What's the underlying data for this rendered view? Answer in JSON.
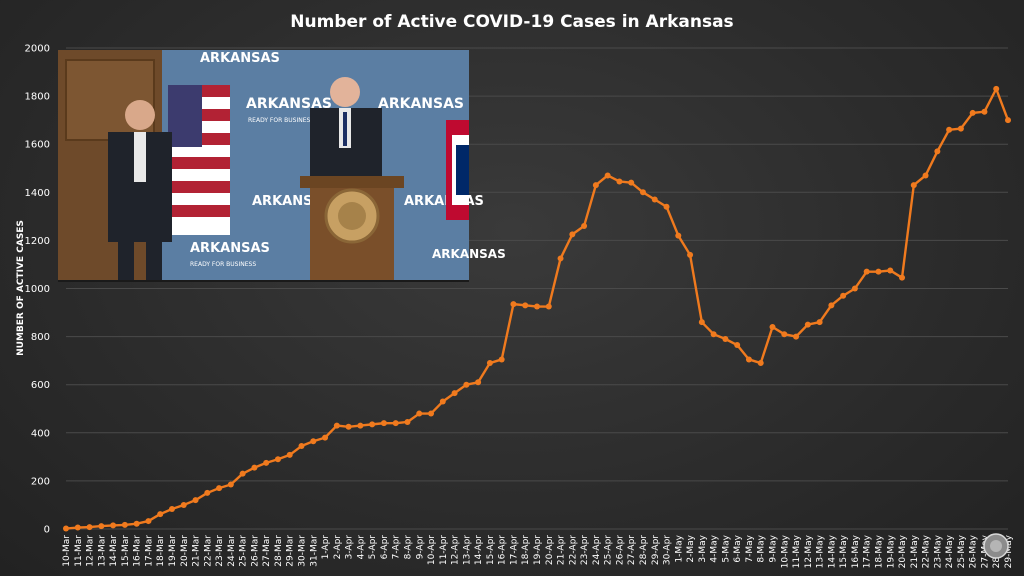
{
  "chart_data": {
    "type": "line",
    "title": "Number of Active COVID-19 Cases in Arkansas",
    "xlabel": "",
    "ylabel": "NUMBER OF ACTIVE CASES",
    "ylim": [
      0,
      2000
    ],
    "yticks": [
      0,
      200,
      400,
      600,
      800,
      1000,
      1200,
      1400,
      1600,
      1800,
      2000
    ],
    "grid": true,
    "legend": "none",
    "x": [
      "10-Mar",
      "11-Mar",
      "12-Mar",
      "13-Mar",
      "14-Mar",
      "15-Mar",
      "16-Mar",
      "17-Mar",
      "18-Mar",
      "19-Mar",
      "20-Mar",
      "21-Mar",
      "22-Mar",
      "23-Mar",
      "24-Mar",
      "25-Mar",
      "26-Mar",
      "27-Mar",
      "28-Mar",
      "29-Mar",
      "30-Mar",
      "31-Mar",
      "1-Apr",
      "2-Apr",
      "3-Apr",
      "4-Apr",
      "5-Apr",
      "6-Apr",
      "7-Apr",
      "8-Apr",
      "9-Apr",
      "10-Apr",
      "11-Apr",
      "12-Apr",
      "13-Apr",
      "14-Apr",
      "15-Apr",
      "16-Apr",
      "17-Apr",
      "18-Apr",
      "19-Apr",
      "20-Apr",
      "21-Apr",
      "22-Apr",
      "23-Apr",
      "24-Apr",
      "25-Apr",
      "26-Apr",
      "27-Apr",
      "28-Apr",
      "29-Apr",
      "30-Apr",
      "1-May",
      "2-May",
      "3-May",
      "4-May",
      "5-May",
      "6-May",
      "7-May",
      "8-May",
      "9-May",
      "10-May",
      "11-May",
      "12-May",
      "13-May",
      "14-May",
      "15-May",
      "16-May",
      "17-May",
      "18-May",
      "19-May",
      "20-May",
      "21-May",
      "22-May",
      "23-May",
      "24-May",
      "25-May",
      "26-May",
      "27-May",
      "28-May",
      "29-May"
    ],
    "series": [
      {
        "name": "",
        "color": "#f07a1e",
        "values": [
          2,
          6,
          8,
          12,
          15,
          17,
          22,
          33,
          62,
          83,
          100,
          120,
          150,
          170,
          185,
          230,
          255,
          275,
          290,
          308,
          345,
          365,
          380,
          430,
          425,
          430,
          435,
          440,
          440,
          445,
          480,
          480,
          530,
          565,
          600,
          610,
          690,
          705,
          935,
          930,
          925,
          925,
          1125,
          1225,
          1260,
          1430,
          1470,
          1445,
          1440,
          1400,
          1370,
          1340,
          1220,
          1140,
          860,
          810,
          790,
          765,
          705,
          690,
          840,
          810,
          800,
          850,
          860,
          930,
          970,
          1000,
          1070,
          1070,
          1075,
          1045,
          1430,
          1470,
          1570,
          1660,
          1665,
          1730,
          1735,
          1830,
          1700
        ]
      }
    ]
  },
  "inset": {
    "backdrop_text": [
      "ARKANSAS",
      "READY FOR BUSINESS"
    ]
  }
}
